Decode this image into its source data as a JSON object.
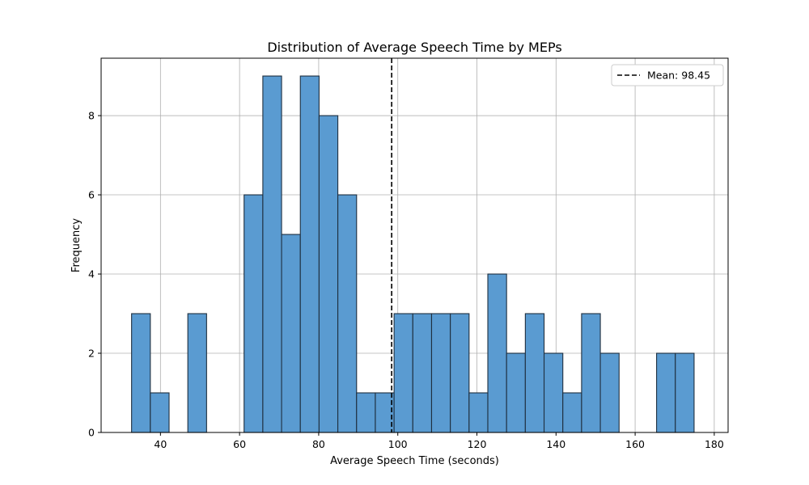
{
  "chart_data": {
    "type": "bar",
    "title": "Distribution of Average Speech Time by MEPs",
    "xlabel": "Average Speech Time (seconds)",
    "ylabel": "Frequency",
    "xlim": [
      25,
      183.5
    ],
    "ylim": [
      0,
      9.45
    ],
    "xticks": [
      40,
      60,
      80,
      100,
      120,
      140,
      160,
      180
    ],
    "yticks": [
      0,
      2,
      4,
      6,
      8
    ],
    "grid": true,
    "bin_start": 32.7,
    "bin_width": 4.74,
    "counts": [
      3,
      1,
      0,
      3,
      0,
      0,
      6,
      9,
      5,
      9,
      8,
      6,
      1,
      1,
      3,
      3,
      3,
      3,
      1,
      4,
      2,
      3,
      2,
      1,
      3,
      2,
      0,
      0,
      2,
      2
    ],
    "bar_color": "#5a9bd1",
    "edge_color": "#1f2f3f",
    "mean": 98.45,
    "mean_label": "Mean: 98.45",
    "legend_position": "upper right"
  }
}
